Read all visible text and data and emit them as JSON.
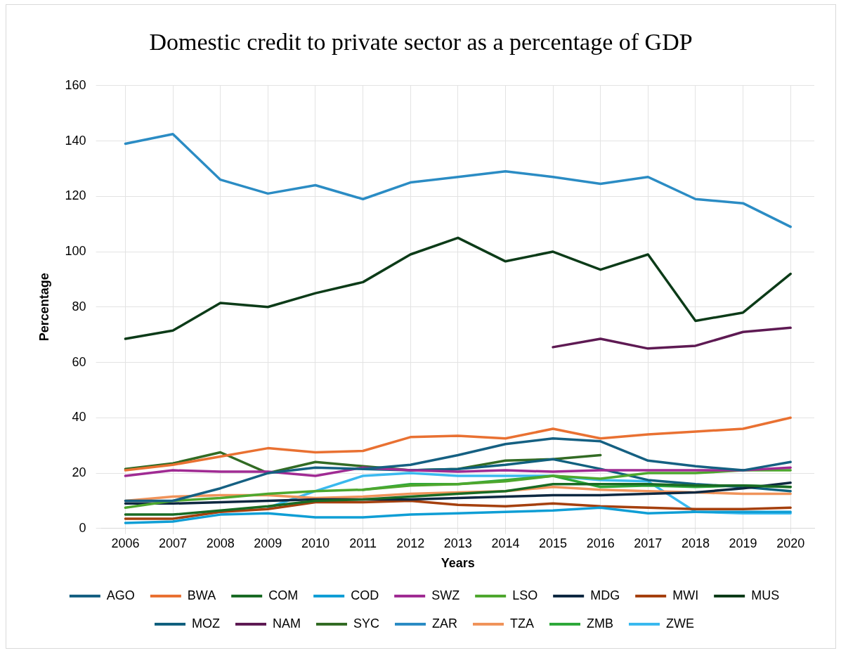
{
  "chart_data": {
    "type": "line",
    "title": "Domestic credit to private sector as a percentage of GDP",
    "xlabel": "Years",
    "ylabel": "Percentage",
    "categories": [
      "2006",
      "2007",
      "2008",
      "2009",
      "2010",
      "2011",
      "2012",
      "2013",
      "2014",
      "2015",
      "2016",
      "2017",
      "2018",
      "2019",
      "2020"
    ],
    "ylim": [
      0,
      160
    ],
    "yticks": [
      0,
      20,
      40,
      60,
      80,
      100,
      120,
      140,
      160
    ],
    "grid": true,
    "legend": "bottom",
    "marker": "none",
    "series": [
      {
        "name": "AGO",
        "color": "#156082",
        "values": [
          10,
          10,
          14.5,
          20,
          22,
          21.5,
          23,
          26.5,
          30.5,
          32.5,
          31.5,
          24.5,
          22.5,
          21,
          24
        ]
      },
      {
        "name": "BWA",
        "color": "#e97132",
        "values": [
          21,
          23,
          26,
          29,
          27.5,
          28,
          33,
          33.5,
          32.5,
          36,
          32.5,
          34,
          35,
          36,
          40
        ]
      },
      {
        "name": "COM",
        "color": "#196b24",
        "values": [
          5,
          5,
          6.5,
          8,
          10,
          10.5,
          11.5,
          12.5,
          13.5,
          16,
          16,
          16,
          15.5,
          15.5,
          15
        ]
      },
      {
        "name": "COD",
        "color": "#0f9ed5",
        "values": [
          2,
          2.5,
          5,
          5.5,
          4,
          4,
          5,
          5.5,
          6,
          6.5,
          7.5,
          5.5,
          6,
          6,
          6
        ]
      },
      {
        "name": "SWZ",
        "color": "#a02b93",
        "values": [
          19,
          21,
          20.5,
          20.5,
          19,
          22,
          21,
          20.5,
          21,
          20.5,
          21,
          21,
          21,
          21,
          22
        ]
      },
      {
        "name": "LSO",
        "color": "#4ea72e",
        "values": [
          7.5,
          10,
          11,
          12.5,
          13.5,
          14,
          15.5,
          16,
          17,
          19,
          18,
          20,
          20,
          21,
          21
        ]
      },
      {
        "name": "MDG",
        "color": "#0e2841",
        "values": [
          9,
          9,
          9.5,
          10,
          10.5,
          10.5,
          10.5,
          11,
          11.5,
          12,
          12,
          12.5,
          13,
          14.5,
          16.5
        ]
      },
      {
        "name": "MWI",
        "color": "#a5400e",
        "values": [
          3.5,
          3.5,
          6,
          7,
          9.5,
          9.5,
          10,
          8.5,
          8,
          9,
          8,
          7.5,
          7,
          7,
          7.5
        ]
      },
      {
        "name": "MUS",
        "color": "#0c3b18",
        "values": [
          68.5,
          71.5,
          81.5,
          80,
          85,
          89,
          99,
          105,
          96.5,
          100,
          93.5,
          99,
          75,
          78,
          92
        ]
      },
      {
        "name": "MOZ",
        "color": "#10607e",
        "values": [
          null,
          null,
          null,
          null,
          null,
          21.5,
          21,
          21.5,
          23,
          25,
          21.5,
          17.5,
          16,
          15,
          13.5
        ]
      },
      {
        "name": "NAM",
        "color": "#5e1a53",
        "values": [
          null,
          null,
          null,
          null,
          null,
          null,
          null,
          null,
          null,
          65.5,
          68.5,
          65,
          66,
          71,
          72.5
        ]
      },
      {
        "name": "SYC",
        "color": "#326b24",
        "values": [
          21.5,
          23.5,
          27.5,
          20,
          24,
          22.5,
          21,
          21.5,
          24.5,
          25,
          26.5,
          null,
          null,
          null,
          null
        ]
      },
      {
        "name": "ZAR",
        "color": "#2b8cc4",
        "values": [
          139,
          142.5,
          126,
          121,
          124,
          119,
          125,
          127,
          129,
          127,
          124.5,
          127,
          119,
          117.5,
          109
        ]
      },
      {
        "name": "TZA",
        "color": "#f0935a",
        "values": [
          10,
          11.5,
          12,
          12,
          11,
          11.5,
          12.5,
          13,
          13.5,
          15,
          14,
          13.5,
          13,
          12.5,
          12.5
        ]
      },
      {
        "name": "ZMB",
        "color": "#2ea83a",
        "values": [
          null,
          null,
          null,
          null,
          null,
          14,
          16,
          16,
          17.5,
          19,
          15,
          15.5,
          15,
          15.5,
          15
        ]
      },
      {
        "name": "ZWE",
        "color": "#3ab9ef",
        "values": [
          null,
          null,
          null,
          7.5,
          13.5,
          19,
          20,
          19,
          19,
          19,
          17.5,
          17,
          6,
          5.5,
          5.5
        ]
      }
    ]
  }
}
